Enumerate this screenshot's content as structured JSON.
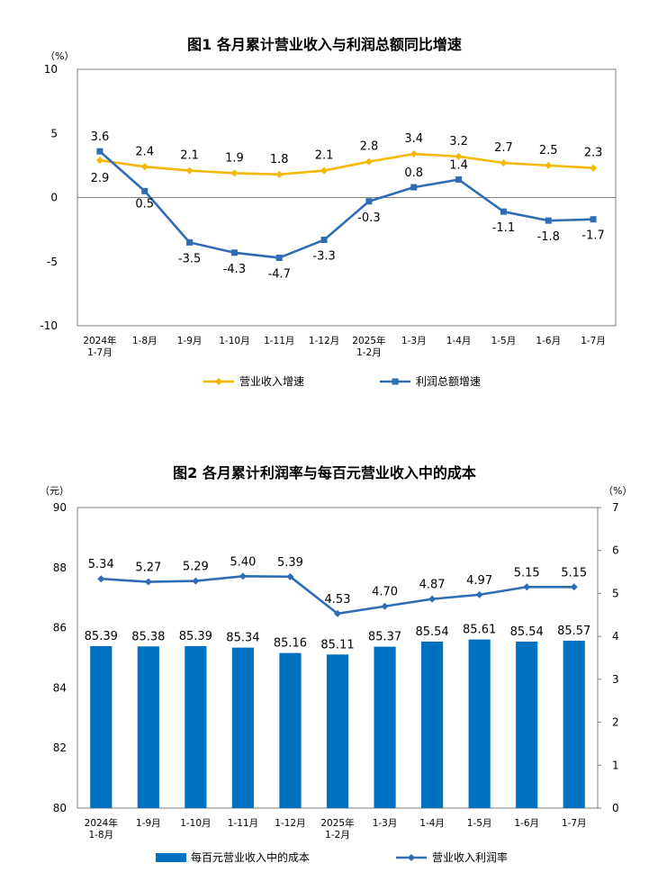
{
  "chart_data": [
    {
      "type": "line",
      "title": "图1 各月累计营业收入与利润总额同比增速",
      "yunit": "（%）",
      "ylim": [
        -10,
        10
      ],
      "yticks": [
        -10,
        -5,
        0,
        5,
        10
      ],
      "categories": [
        "2024年\n1-7月",
        "1-8月",
        "1-9月",
        "1-10月",
        "1-11月",
        "1-12月",
        "2025年\n1-2月",
        "1-3月",
        "1-4月",
        "1-5月",
        "1-6月",
        "1-7月"
      ],
      "series": [
        {
          "name": "营业收入增速",
          "color": "#f5b800",
          "marker": "diamond",
          "values": [
            2.9,
            2.4,
            2.1,
            1.9,
            1.8,
            2.1,
            2.8,
            3.4,
            3.2,
            2.7,
            2.5,
            2.3
          ],
          "labels": [
            "2.9",
            "2.4",
            "2.1",
            "1.9",
            "1.8",
            "2.1",
            "2.8",
            "3.4",
            "3.2",
            "2.7",
            "2.5",
            "2.3"
          ]
        },
        {
          "name": "利润总额增速",
          "color": "#2e6db4",
          "marker": "square",
          "values": [
            3.6,
            0.5,
            -3.5,
            -4.3,
            -4.7,
            -3.3,
            -0.3,
            0.8,
            1.4,
            -1.1,
            -1.8,
            -1.7
          ],
          "labels": [
            "3.6",
            "0.5",
            "-3.5",
            "-4.3",
            "-4.7",
            "-3.3",
            "-0.3",
            "0.8",
            "1.4",
            "-1.1",
            "-1.8",
            "-1.7"
          ]
        }
      ],
      "grid": false,
      "legend_position": "bottom"
    },
    {
      "type": "bar",
      "title": "图2 各月累计利润率与每百元营业收入中的成本",
      "yunit_left": "（元）",
      "yunit_right": "（%）",
      "ylim_left": [
        80,
        90
      ],
      "yticks_left": [
        80,
        82,
        84,
        86,
        88,
        90
      ],
      "ylim_right": [
        0,
        7
      ],
      "yticks_right": [
        0,
        1,
        2,
        3,
        4,
        5,
        6,
        7
      ],
      "categories": [
        "2024年\n1-8月",
        "1-9月",
        "1-10月",
        "1-11月",
        "1-12月",
        "2025年\n1-2月",
        "1-3月",
        "1-4月",
        "1-5月",
        "1-6月",
        "1-7月"
      ],
      "bars": {
        "name": "每百元营业收入中的成本",
        "color": "#0070c0",
        "values": [
          85.39,
          85.38,
          85.39,
          85.34,
          85.16,
          85.11,
          85.37,
          85.54,
          85.61,
          85.54,
          85.57
        ],
        "labels": [
          "85.39",
          "85.38",
          "85.39",
          "85.34",
          "85.16",
          "85.11",
          "85.37",
          "85.54",
          "85.61",
          "85.54",
          "85.57"
        ]
      },
      "line": {
        "name": "营业收入利润率",
        "color": "#2e6db4",
        "marker": "diamond",
        "values": [
          5.34,
          5.27,
          5.29,
          5.4,
          5.39,
          4.53,
          4.7,
          4.87,
          4.97,
          5.15,
          5.15
        ],
        "labels": [
          "5.34",
          "5.27",
          "5.29",
          "5.40",
          "5.39",
          "4.53",
          "4.70",
          "4.87",
          "4.97",
          "5.15",
          "5.15"
        ]
      },
      "grid": false,
      "legend_position": "bottom"
    }
  ]
}
